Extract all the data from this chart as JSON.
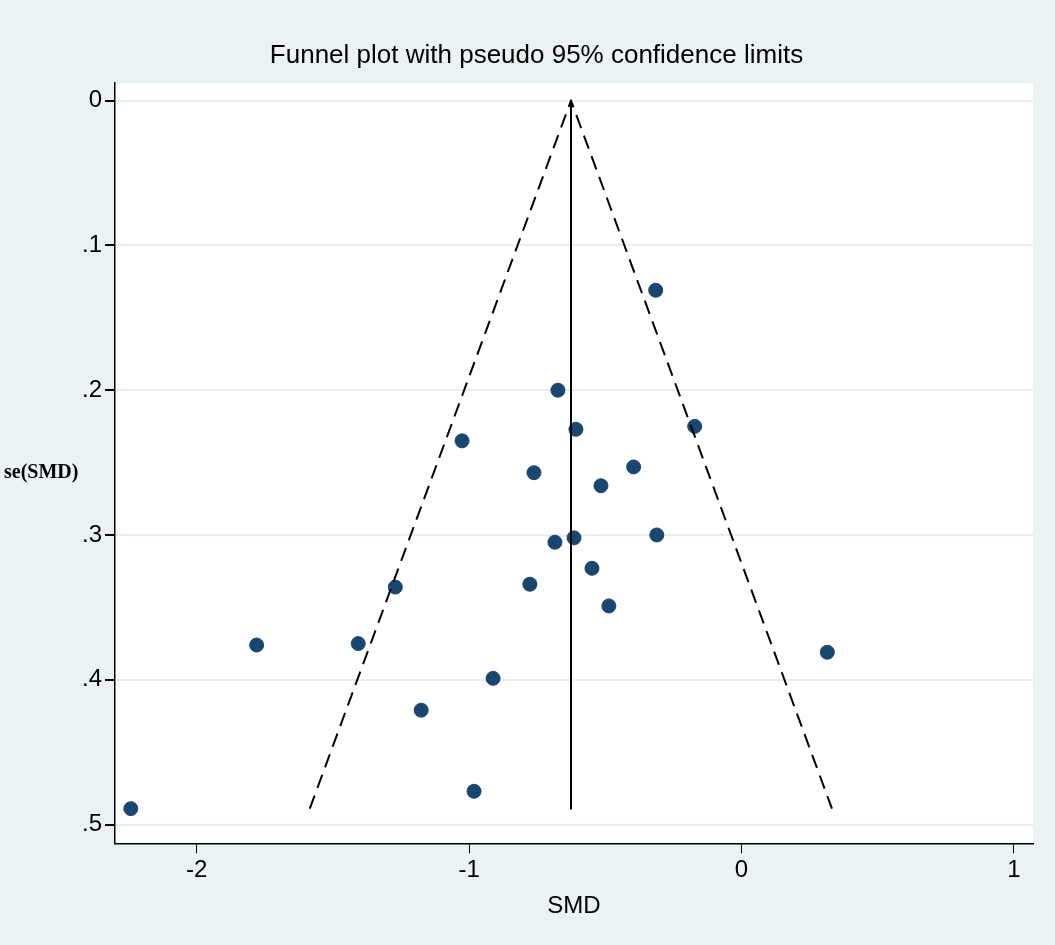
{
  "chart_data": {
    "type": "scatter",
    "title": "Funnel plot with pseudo 95% confidence limits",
    "xlabel": "SMD",
    "ylabel": "se(SMD)",
    "xlim": [
      -2.3,
      1.07
    ],
    "xticks": [
      -2,
      -1,
      0,
      1
    ],
    "ylim": [
      0.513,
      -0.012
    ],
    "yticks": [
      {
        "value": 0,
        "label": "0"
      },
      {
        "value": 0.1,
        "label": ".1"
      },
      {
        "value": 0.2,
        "label": ".2"
      },
      {
        "value": 0.3,
        "label": ".3"
      },
      {
        "value": 0.4,
        "label": ".4"
      },
      {
        "value": 0.5,
        "label": ".5"
      }
    ],
    "grid": "y",
    "legend": false,
    "marker": "circle",
    "series": [
      {
        "type": "line",
        "color": "#000000",
        "line_style": "dashed",
        "marker": "none",
        "x": [
          -1.585,
          -0.626,
          0.332
        ],
        "values": [
          0.489,
          0,
          0.489
        ]
      },
      {
        "type": "line",
        "color": "#000000",
        "line_style": "solid",
        "marker": "none",
        "x": [
          -0.626,
          -0.626
        ],
        "values": [
          0,
          0.489
        ]
      },
      {
        "type": "scatter",
        "color": "#1a476f",
        "x": [
          -0.315,
          -0.674,
          -0.608,
          -0.172,
          -1.026,
          -0.762,
          -0.396,
          -0.516,
          -0.615,
          -0.685,
          -0.311,
          -0.549,
          -1.271,
          -0.777,
          -0.487,
          -1.78,
          -1.407,
          0.315,
          -0.912,
          -1.176,
          -0.982,
          -2.242
        ],
        "values": [
          0.131,
          0.2,
          0.227,
          0.225,
          0.235,
          0.257,
          0.253,
          0.266,
          0.302,
          0.305,
          0.3,
          0.323,
          0.336,
          0.334,
          0.349,
          0.376,
          0.375,
          0.381,
          0.399,
          0.421,
          0.477,
          0.489
        ]
      }
    ]
  }
}
